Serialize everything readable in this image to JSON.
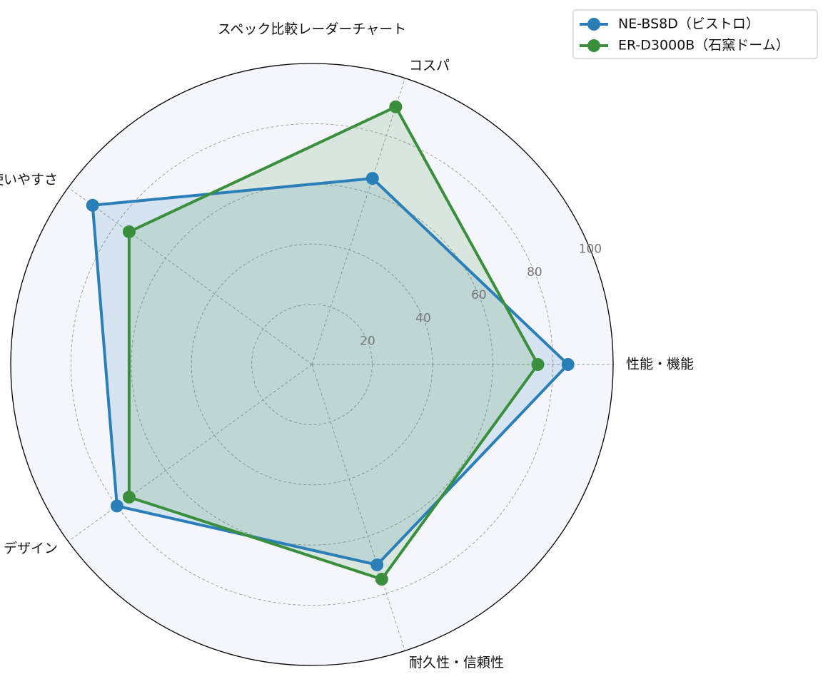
{
  "chart_data": {
    "type": "radar",
    "title": "スペック比較レーダーチャート",
    "axes": [
      "性能・機能",
      "コスパ",
      "使いやすさ",
      "デザイン",
      "耐久性・信頼性"
    ],
    "rlim": [
      0,
      100
    ],
    "rticks": [
      20,
      40,
      60,
      80,
      100
    ],
    "grid": true,
    "legend_position": "top-right",
    "series": [
      {
        "name": "NE-BS8D（ビストロ）",
        "values": [
          85,
          65,
          90,
          80,
          70
        ],
        "color": "#2b7fb8"
      },
      {
        "name": "ER-D3000B（石窯ドーム）",
        "values": [
          75,
          90,
          75,
          75,
          75
        ],
        "color": "#3a8f3c"
      }
    ]
  }
}
